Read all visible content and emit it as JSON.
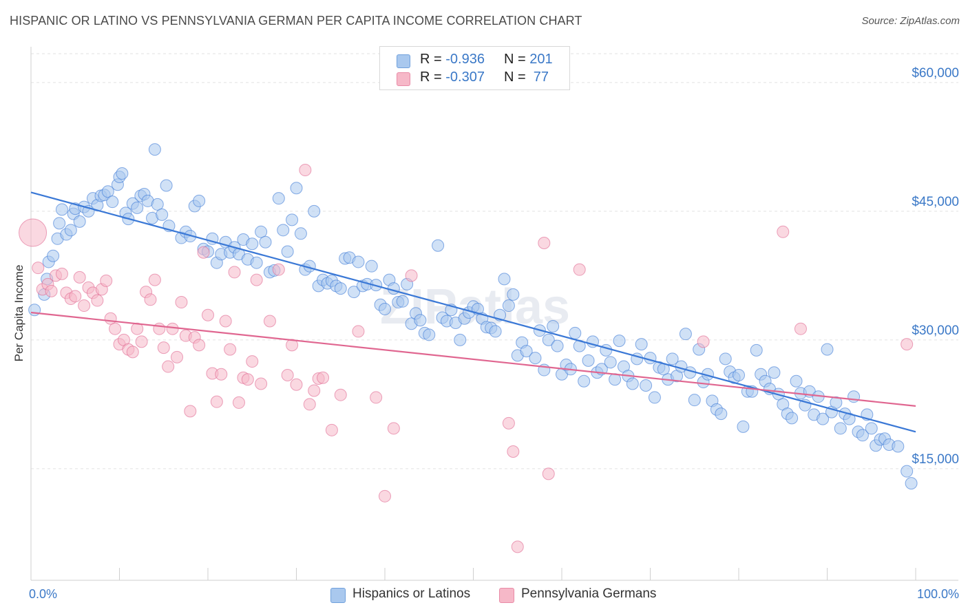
{
  "title": "HISPANIC OR LATINO VS PENNSYLVANIA GERMAN PER CAPITA INCOME CORRELATION CHART",
  "source": "Source: ZipAtlas.com",
  "watermark": "ZIPatlas",
  "legend": {
    "rows": [
      {
        "r_label": "R = ",
        "r_value": "-0.936",
        "n_label": "N = ",
        "n_value": "201",
        "color": "#a9c8ee",
        "edge": "#6fa0dc"
      },
      {
        "r_label": "R = ",
        "r_value": "-0.307",
        "n_label": "N = ",
        "n_value": " 77",
        "color": "#f6b8c8",
        "edge": "#e98aa6"
      }
    ]
  },
  "bottom_legend": {
    "items": [
      {
        "label": "Hispanics or Latinos",
        "color": "#a9c8ee"
      },
      {
        "label": "Pennsylvania Germans",
        "color": "#f6b8c8"
      }
    ]
  },
  "chart_data": {
    "type": "scatter",
    "title": "HISPANIC OR LATINO VS PENNSYLVANIA GERMAN PER CAPITA INCOME CORRELATION CHART",
    "ylabel": "Per Capita Income",
    "xlabel": "",
    "xlim": [
      0,
      100
    ],
    "ylim": [
      2000,
      64000
    ],
    "x_tick_labels": [
      "0.0%",
      "100.0%"
    ],
    "y_ticks": [
      15000,
      30000,
      45000,
      60000
    ],
    "y_tick_labels": [
      "$15,000",
      "$30,000",
      "$45,000",
      "$60,000"
    ],
    "grid": true,
    "series": [
      {
        "name": "Hispanics or Latinos",
        "color": "#3a78d6",
        "fill": "#a9c8ee",
        "trend": {
          "x": [
            0,
            100
          ],
          "y": [
            47200,
            19300
          ]
        },
        "points": [
          [
            0.4,
            33500
          ],
          [
            1.5,
            35300
          ],
          [
            1.8,
            37100
          ],
          [
            2,
            39100
          ],
          [
            2.5,
            39800
          ],
          [
            3,
            41800
          ],
          [
            3.2,
            43600
          ],
          [
            3.5,
            45200
          ],
          [
            4,
            42300
          ],
          [
            4.5,
            42800
          ],
          [
            4.8,
            44700
          ],
          [
            5,
            45300
          ],
          [
            5.5,
            43800
          ],
          [
            6,
            45500
          ],
          [
            6.5,
            45000
          ],
          [
            7,
            46500
          ],
          [
            7.5,
            45700
          ],
          [
            7.9,
            46800
          ],
          [
            8.3,
            46900
          ],
          [
            8.7,
            47300
          ],
          [
            9.2,
            46100
          ],
          [
            9.8,
            48100
          ],
          [
            10,
            49000
          ],
          [
            10.3,
            49400
          ],
          [
            10.7,
            44800
          ],
          [
            11,
            44100
          ],
          [
            11.5,
            45900
          ],
          [
            12,
            45400
          ],
          [
            12.4,
            46800
          ],
          [
            12.8,
            47000
          ],
          [
            13.2,
            46200
          ],
          [
            13.7,
            44200
          ],
          [
            14,
            52200
          ],
          [
            14.3,
            45800
          ],
          [
            14.8,
            44600
          ],
          [
            15.3,
            48000
          ],
          [
            15.6,
            43300
          ],
          [
            17,
            41900
          ],
          [
            17.5,
            42600
          ],
          [
            18,
            42100
          ],
          [
            18.5,
            45600
          ],
          [
            19,
            46200
          ],
          [
            19.5,
            40600
          ],
          [
            20,
            40300
          ],
          [
            20.5,
            41800
          ],
          [
            21,
            39000
          ],
          [
            21.5,
            40000
          ],
          [
            22,
            41400
          ],
          [
            22.5,
            40200
          ],
          [
            23,
            40800
          ],
          [
            23.5,
            40000
          ],
          [
            24,
            41700
          ],
          [
            24.5,
            39400
          ],
          [
            25,
            41200
          ],
          [
            25.5,
            39000
          ],
          [
            26,
            42600
          ],
          [
            26.5,
            41400
          ],
          [
            27,
            37900
          ],
          [
            27.5,
            38100
          ],
          [
            28,
            46500
          ],
          [
            28.5,
            42800
          ],
          [
            29,
            40300
          ],
          [
            29.5,
            44000
          ],
          [
            30,
            47700
          ],
          [
            30.5,
            42400
          ],
          [
            31,
            38200
          ],
          [
            31.5,
            38600
          ],
          [
            32,
            45000
          ],
          [
            32.5,
            36300
          ],
          [
            33,
            37000
          ],
          [
            33.5,
            36600
          ],
          [
            34,
            36900
          ],
          [
            34.5,
            36300
          ],
          [
            35,
            36000
          ],
          [
            35.5,
            39500
          ],
          [
            36,
            39600
          ],
          [
            36.5,
            35600
          ],
          [
            37,
            39100
          ],
          [
            37.5,
            36300
          ],
          [
            38,
            36500
          ],
          [
            38.5,
            38600
          ],
          [
            39,
            36400
          ],
          [
            39.5,
            34100
          ],
          [
            40,
            33600
          ],
          [
            40.5,
            37000
          ],
          [
            41,
            36000
          ],
          [
            41.5,
            34400
          ],
          [
            42,
            34500
          ],
          [
            42.5,
            36500
          ],
          [
            43,
            31900
          ],
          [
            43.5,
            33100
          ],
          [
            44,
            32300
          ],
          [
            44.5,
            30800
          ],
          [
            45,
            30600
          ],
          [
            46,
            41000
          ],
          [
            46.5,
            32600
          ],
          [
            47,
            32200
          ],
          [
            47.5,
            33500
          ],
          [
            48,
            32000
          ],
          [
            48.5,
            30000
          ],
          [
            49,
            32500
          ],
          [
            49.5,
            33200
          ],
          [
            50,
            33900
          ],
          [
            50.5,
            33600
          ],
          [
            51,
            32500
          ],
          [
            51.5,
            31500
          ],
          [
            52,
            31400
          ],
          [
            52.5,
            31000
          ],
          [
            53,
            32900
          ],
          [
            53.5,
            37100
          ],
          [
            54,
            34000
          ],
          [
            54.5,
            35300
          ],
          [
            55,
            28200
          ],
          [
            55.5,
            29700
          ],
          [
            56,
            28700
          ],
          [
            57,
            27900
          ],
          [
            57.5,
            31100
          ],
          [
            58,
            26500
          ],
          [
            58.5,
            30000
          ],
          [
            59,
            31600
          ],
          [
            59.5,
            29300
          ],
          [
            60,
            26000
          ],
          [
            60.5,
            27100
          ],
          [
            61,
            26600
          ],
          [
            61.5,
            30800
          ],
          [
            62,
            29300
          ],
          [
            62.5,
            25200
          ],
          [
            63,
            27600
          ],
          [
            63.5,
            29800
          ],
          [
            64,
            26200
          ],
          [
            64.5,
            26600
          ],
          [
            65,
            28800
          ],
          [
            65.5,
            27400
          ],
          [
            66,
            25400
          ],
          [
            66.5,
            29900
          ],
          [
            67,
            26900
          ],
          [
            67.5,
            25800
          ],
          [
            68,
            24900
          ],
          [
            68.5,
            27800
          ],
          [
            69,
            29500
          ],
          [
            69.5,
            24700
          ],
          [
            70,
            27900
          ],
          [
            70.5,
            23300
          ],
          [
            71,
            26800
          ],
          [
            71.5,
            26600
          ],
          [
            72,
            25400
          ],
          [
            72.5,
            27800
          ],
          [
            73,
            25800
          ],
          [
            73.5,
            26900
          ],
          [
            74,
            30700
          ],
          [
            74.5,
            26200
          ],
          [
            75,
            23000
          ],
          [
            75.5,
            28900
          ],
          [
            76,
            25100
          ],
          [
            76.5,
            26000
          ],
          [
            77,
            22900
          ],
          [
            77.5,
            21900
          ],
          [
            78,
            21400
          ],
          [
            78.5,
            27800
          ],
          [
            79,
            26300
          ],
          [
            79.5,
            25600
          ],
          [
            80,
            25900
          ],
          [
            80.5,
            19900
          ],
          [
            81,
            24000
          ],
          [
            81.5,
            24000
          ],
          [
            82,
            28800
          ],
          [
            82.5,
            26000
          ],
          [
            83,
            25200
          ],
          [
            83.5,
            24300
          ],
          [
            84,
            26200
          ],
          [
            84.5,
            23700
          ],
          [
            85,
            22500
          ],
          [
            85.5,
            21400
          ],
          [
            86,
            20900
          ],
          [
            86.5,
            25200
          ],
          [
            87,
            23800
          ],
          [
            87.5,
            22400
          ],
          [
            88,
            24000
          ],
          [
            88.5,
            21300
          ],
          [
            89,
            23400
          ],
          [
            89.5,
            20800
          ],
          [
            90,
            28900
          ],
          [
            90.5,
            21600
          ],
          [
            91,
            22700
          ],
          [
            91.5,
            19700
          ],
          [
            92,
            21400
          ],
          [
            92.5,
            20800
          ],
          [
            93,
            23400
          ],
          [
            93.5,
            19300
          ],
          [
            94,
            18900
          ],
          [
            94.5,
            21300
          ],
          [
            95,
            19700
          ],
          [
            95.5,
            17700
          ],
          [
            96,
            18400
          ],
          [
            96.5,
            18500
          ],
          [
            97,
            17800
          ],
          [
            98,
            17600
          ],
          [
            99,
            14700
          ],
          [
            99.5,
            13300
          ]
        ]
      },
      {
        "name": "Pennsylvania Germans",
        "color": "#e06690",
        "fill": "#f6b8c8",
        "trend": {
          "x": [
            0,
            100
          ],
          "y": [
            33200,
            22300
          ]
        },
        "points": [
          [
            0.2,
            42500,
            "big"
          ],
          [
            0.8,
            38400
          ],
          [
            1.3,
            35900
          ],
          [
            1.9,
            36500
          ],
          [
            2.3,
            35700
          ],
          [
            2.8,
            37500
          ],
          [
            3.5,
            37700
          ],
          [
            4,
            35500
          ],
          [
            4.5,
            34800
          ],
          [
            5,
            35100
          ],
          [
            5.5,
            37300
          ],
          [
            6,
            34000
          ],
          [
            6.5,
            36100
          ],
          [
            7,
            35500
          ],
          [
            7.5,
            34600
          ],
          [
            8,
            35900
          ],
          [
            8.5,
            36900
          ],
          [
            9,
            32500
          ],
          [
            9.5,
            31300
          ],
          [
            10,
            29500
          ],
          [
            10.5,
            30000
          ],
          [
            11,
            28900
          ],
          [
            11.5,
            28600
          ],
          [
            12,
            31300
          ],
          [
            12.5,
            29800
          ],
          [
            13,
            35600
          ],
          [
            13.5,
            34700
          ],
          [
            14,
            37000
          ],
          [
            14.5,
            31300
          ],
          [
            15,
            29100
          ],
          [
            15.5,
            26900
          ],
          [
            16,
            31300
          ],
          [
            16.5,
            28000
          ],
          [
            17,
            34400
          ],
          [
            17.5,
            30500
          ],
          [
            18,
            21700
          ],
          [
            18.5,
            30300
          ],
          [
            19,
            29400
          ],
          [
            19.5,
            40200
          ],
          [
            20,
            32900
          ],
          [
            20.5,
            26100
          ],
          [
            21,
            22800
          ],
          [
            21.5,
            26000
          ],
          [
            22,
            32200
          ],
          [
            22.5,
            28900
          ],
          [
            23,
            37900
          ],
          [
            23.5,
            22700
          ],
          [
            24,
            25600
          ],
          [
            24.5,
            25400
          ],
          [
            25,
            27500
          ],
          [
            25.5,
            37000
          ],
          [
            26,
            24900
          ],
          [
            27,
            32200
          ],
          [
            28,
            38200
          ],
          [
            29,
            25900
          ],
          [
            29.5,
            29400
          ],
          [
            30,
            24800
          ],
          [
            31,
            49800
          ],
          [
            31.5,
            22500
          ],
          [
            32,
            24100
          ],
          [
            32.5,
            25500
          ],
          [
            33,
            25600
          ],
          [
            34,
            19500
          ],
          [
            35,
            23600
          ],
          [
            37,
            31000
          ],
          [
            39,
            23300
          ],
          [
            40,
            11800
          ],
          [
            41,
            19700
          ],
          [
            43,
            37500
          ],
          [
            54,
            20300
          ],
          [
            54.5,
            17000
          ],
          [
            55,
            5900
          ],
          [
            58,
            41300
          ],
          [
            58.5,
            14400
          ],
          [
            62,
            38200
          ],
          [
            76,
            29800
          ],
          [
            85,
            42600
          ],
          [
            87,
            31300
          ],
          [
            99,
            29500
          ]
        ]
      }
    ]
  }
}
